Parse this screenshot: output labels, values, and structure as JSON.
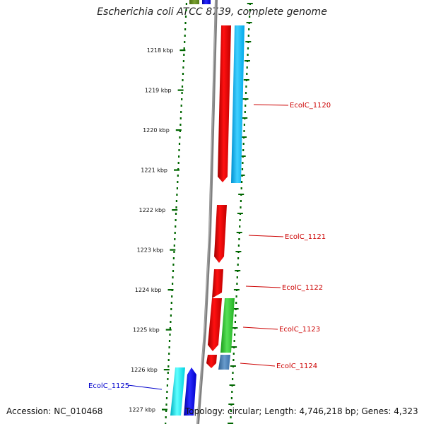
{
  "title": "Escherichia coli ATCC 8739, complete genome",
  "accession_text": "Accession: NC_010468",
  "topology_text": "Topology: circular; Length: 4,746,218 bp; Genes: 4,323",
  "scale": {
    "unit": "kbp",
    "ticks": [
      "1218 kbp",
      "1219 kbp",
      "1220 kbp",
      "1221 kbp",
      "1222 kbp",
      "1223 kbp",
      "1224 kbp",
      "1225 kbp",
      "1226 kbp",
      "1227 kbp"
    ]
  },
  "colors": {
    "forward_cds": "#e41a1c",
    "reverse_cds": "#00bfff",
    "green_cds": "#33cc33",
    "steel_cds": "#4a7fb5",
    "cyan_cds": "#00e5ee",
    "blue_cds": "#0000ee",
    "label_forward": "#cc0000",
    "label_reverse": "#0000cc",
    "ruler": "#006600",
    "backbone": "#808080"
  },
  "genes": [
    {
      "id": "EcolC_1120",
      "label": "EcolC_1120",
      "color": "#cc0000"
    },
    {
      "id": "EcolC_1121",
      "label": "EcolC_1121",
      "color": "#cc0000"
    },
    {
      "id": "EcolC_1122",
      "label": "EcolC_1122",
      "color": "#cc0000"
    },
    {
      "id": "EcolC_1123",
      "label": "EcolC_1123",
      "color": "#cc0000"
    },
    {
      "id": "EcolC_1124",
      "label": "EcolC_1124",
      "color": "#cc0000"
    },
    {
      "id": "EcolC_1125",
      "label": "EcolC_1125",
      "color": "#0000cc"
    }
  ]
}
